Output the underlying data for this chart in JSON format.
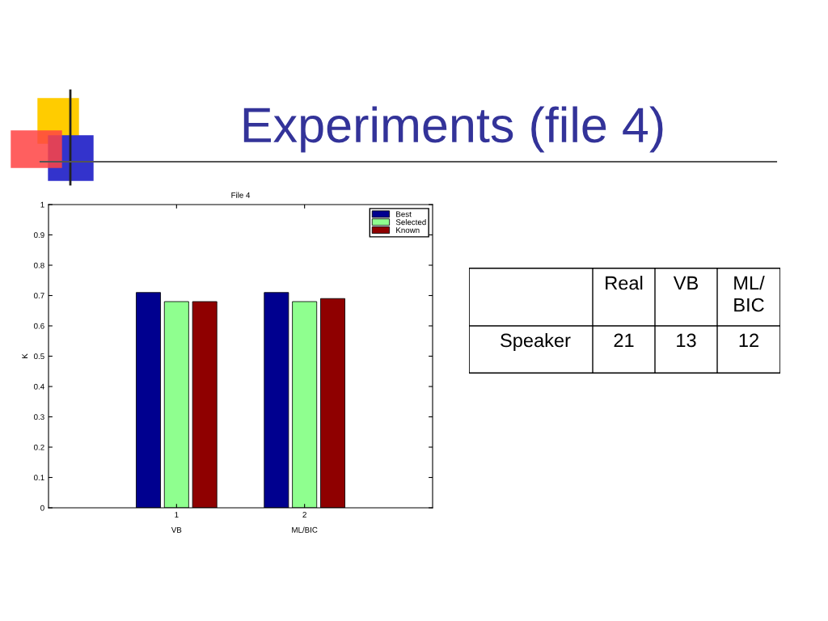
{
  "chart_data": [
    {
      "type": "bar",
      "title": "File 4",
      "ylabel": "K",
      "annotations": [
        "Experiments (file 4)",
        "VB",
        "ML/BIC"
      ],
      "x": [
        1,
        2
      ],
      "series": [
        {
          "name": "Best",
          "color": "#00008f",
          "values": [
            0.71,
            0.71
          ]
        },
        {
          "name": "Selected",
          "color": "#8fff8f",
          "values": [
            0.68,
            0.68
          ]
        },
        {
          "name": "Known",
          "color": "#8f0000",
          "values": [
            0.68,
            0.69
          ]
        }
      ],
      "xlim": [
        0,
        3
      ],
      "xticks": [
        1,
        2
      ],
      "ylim": [
        0,
        1
      ],
      "yticks": [
        0,
        0.1,
        0.2,
        0.3,
        0.4,
        0.5,
        0.6,
        0.7,
        0.8,
        0.9,
        1
      ],
      "grid": false,
      "legend": "top right"
    },
    {
      "type": "other",
      "annotations": [
        "Real",
        "VB",
        "ML/\nBIC",
        "Speaker",
        "21",
        "13",
        "12"
      ]
    }
  ]
}
